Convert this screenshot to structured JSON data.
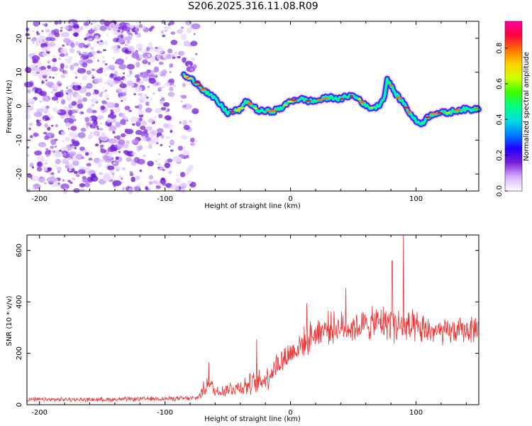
{
  "title": "S206.2025.316.11.08.R09",
  "chart_data": [
    {
      "type": "heatmap",
      "name": "spectrogram",
      "xlabel": "Height of straight line (km)",
      "ylabel": "Frequency (Hz)",
      "xlim": [
        -210,
        150
      ],
      "ylim": [
        -25,
        25
      ],
      "xticks": [
        -200,
        -100,
        0,
        100
      ],
      "xtick_labels": [
        "-200",
        "-100",
        "0",
        "100"
      ],
      "yticks": [
        -20,
        -10,
        0,
        10,
        20
      ],
      "ytick_labels": [
        "-20",
        "-10",
        "0",
        "10",
        "20"
      ],
      "noise_region_x": [
        -210,
        -75
      ],
      "ridge": {
        "x": [
          -85,
          -80,
          -75,
          -70,
          -65,
          -60,
          -55,
          -50,
          -45,
          -40,
          -35,
          -30,
          -25,
          -20,
          -15,
          -10,
          -5,
          0,
          5,
          10,
          15,
          20,
          25,
          30,
          35,
          40,
          45,
          50,
          55,
          60,
          65,
          70,
          75,
          77,
          80,
          85,
          90,
          95,
          100,
          105,
          110,
          115,
          120,
          125,
          130,
          135,
          140,
          145,
          150
        ],
        "freq": [
          9,
          8,
          7,
          5,
          3.5,
          2,
          0,
          -2,
          -1.5,
          -1,
          1.5,
          0,
          -1.5,
          -1.5,
          -1.5,
          -1,
          0,
          1.5,
          2,
          2,
          1.5,
          1.5,
          2,
          2.5,
          2.5,
          2,
          3,
          3,
          2,
          0,
          -0.5,
          0,
          3,
          8,
          6,
          3,
          1,
          -2,
          -4.5,
          -5,
          -3,
          -2,
          -2,
          -2,
          -1.5,
          -1,
          -1,
          -1,
          -0.5
        ]
      },
      "colorbar": {
        "label": "Normalized spectral amplitude",
        "range": [
          0,
          0.95
        ],
        "ticks": [
          0.0,
          0.2,
          0.4,
          0.6,
          0.8
        ],
        "tick_labels": [
          "0.0",
          "0.2",
          "0.4",
          "0.6",
          "0.8"
        ],
        "colors": [
          "#ffffff",
          "#d8b0ff",
          "#7a1fd6",
          "#2200ff",
          "#0080ff",
          "#00e0e0",
          "#00ff80",
          "#40ff00",
          "#d0ff00",
          "#ffd000",
          "#ff7000",
          "#ff0040",
          "#ff00a0"
        ]
      }
    },
    {
      "type": "line",
      "name": "snr",
      "xlabel": "Height of straight line (km)",
      "ylabel": "SNR (10 * v/v)",
      "xlim": [
        -210,
        150
      ],
      "ylim": [
        0,
        660
      ],
      "xticks": [
        -200,
        -100,
        0,
        100
      ],
      "xtick_labels": [
        "-200",
        "-100",
        "0",
        "100"
      ],
      "yticks": [
        0,
        200,
        400,
        600
      ],
      "ytick_labels": [
        "0",
        "200",
        "400",
        "600"
      ],
      "color": "#ee3333",
      "envelope": {
        "x": [
          -210,
          -150,
          -75,
          -70,
          -65,
          -60,
          -50,
          -40,
          -30,
          -20,
          -10,
          0,
          10,
          20,
          30,
          40,
          50,
          60,
          70,
          80,
          90,
          100,
          110,
          120,
          130,
          140,
          150
        ],
        "mean": [
          20,
          20,
          25,
          50,
          90,
          50,
          60,
          70,
          80,
          100,
          160,
          200,
          240,
          280,
          300,
          300,
          300,
          310,
          320,
          320,
          300,
          290,
          290,
          280,
          285,
          290,
          300
        ],
        "spread": [
          8,
          8,
          10,
          30,
          30,
          25,
          30,
          35,
          45,
          50,
          55,
          55,
          55,
          60,
          60,
          60,
          60,
          60,
          65,
          70,
          75,
          70,
          55,
          50,
          50,
          50,
          55
        ]
      },
      "peaks": [
        {
          "x": 81,
          "y": 560
        },
        {
          "x": 90,
          "y": 660
        },
        {
          "x": 44,
          "y": 455
        },
        {
          "x": 13,
          "y": 395
        },
        {
          "x": -27,
          "y": 255
        },
        {
          "x": -65,
          "y": 165
        }
      ]
    }
  ]
}
